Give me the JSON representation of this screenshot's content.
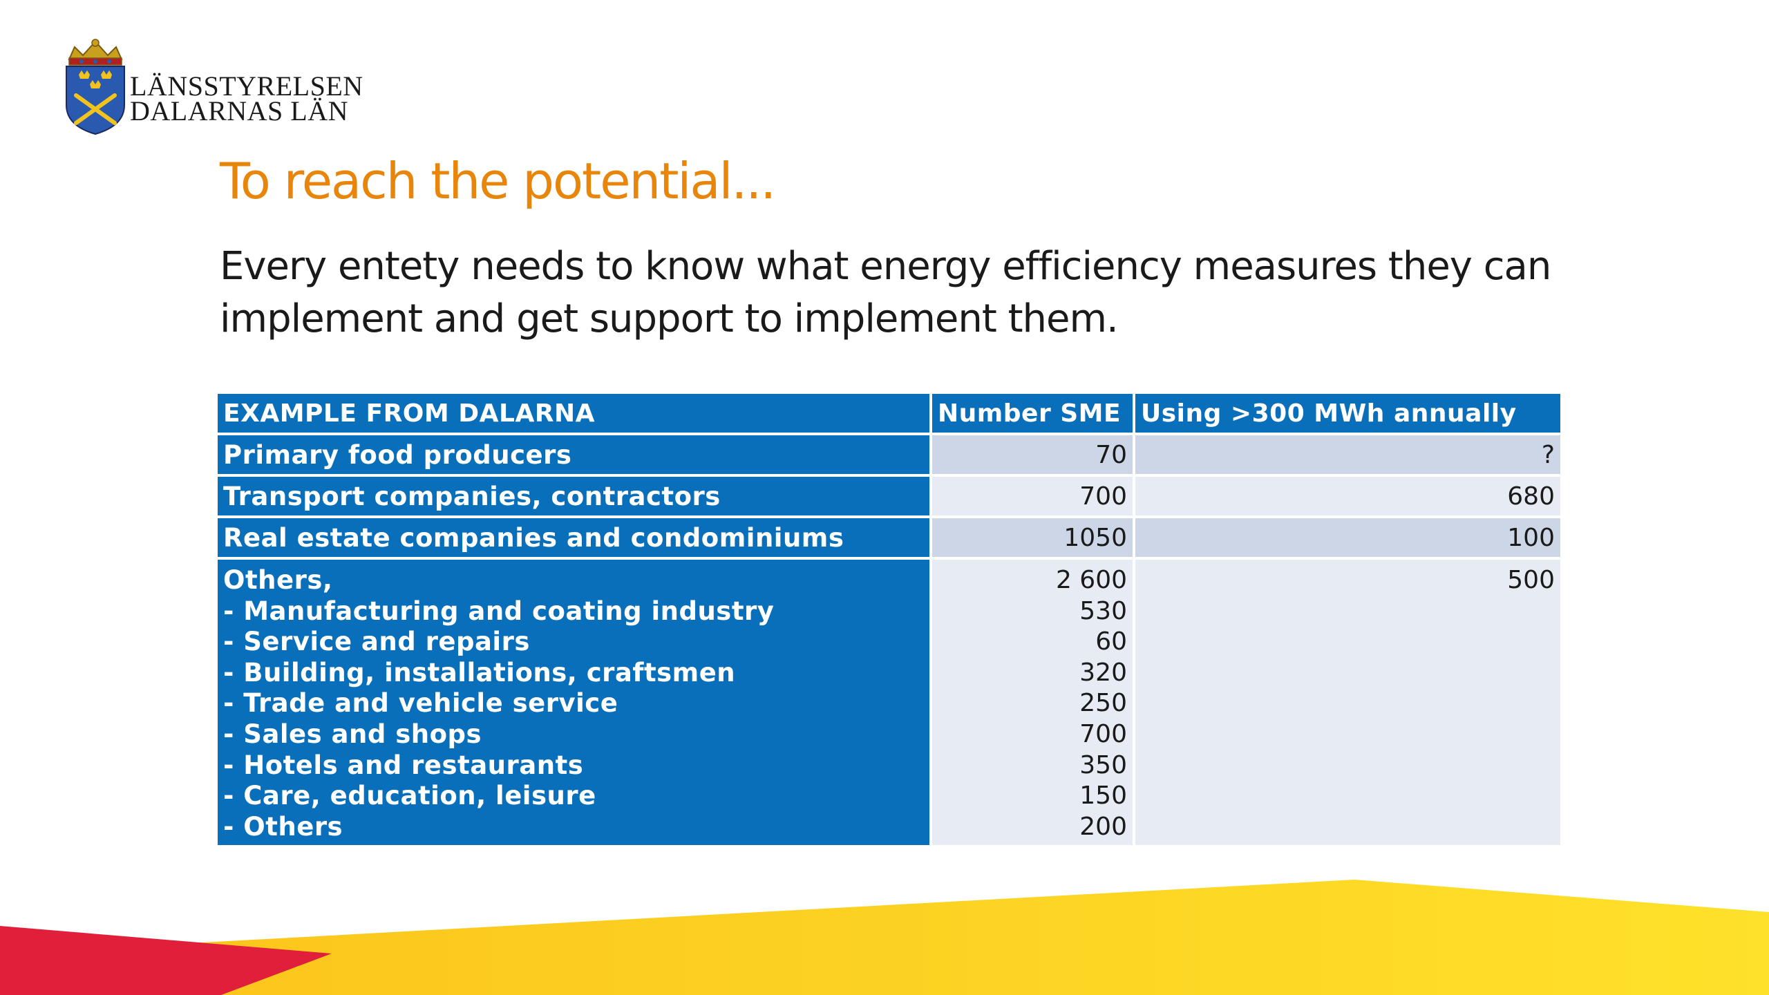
{
  "logo": {
    "line1": "LÄNSSTYRELSEN",
    "line2": "DALARNAS LÄN"
  },
  "title": "To reach the potential...",
  "subtitle": "Every entety needs to know what energy efficiency measures they can implement and get support to implement them.",
  "table": {
    "headers": [
      "EXAMPLE FROM DALARNA",
      "Number SME",
      "Using >300 MWh annually"
    ],
    "rows": [
      {
        "label": "Primary food producers",
        "sme": "70",
        "mwh": "?"
      },
      {
        "label": "Transport companies, contractors",
        "sme": "700",
        "mwh": "680"
      },
      {
        "label": "Real estate companies and condominiums",
        "sme": "1050",
        "mwh": "100"
      }
    ],
    "others": {
      "labels": [
        "Others,",
        "- Manufacturing and coating industry",
        "- Service and repairs",
        "- Building, installations, craftsmen",
        "- Trade and vehicle service",
        "- Sales and shops",
        "- Hotels and restaurants",
        "- Care, education, leisure",
        "- Others"
      ],
      "sme": [
        "2 600",
        "530",
        "60",
        "320",
        "250",
        "700",
        "350",
        "150",
        "200"
      ],
      "mwh": "500"
    }
  },
  "colors": {
    "title": "#e8860b",
    "table_blue": "#0a6fbb",
    "cell_dark": "#cdd6e6",
    "cell_light": "#e7ebf3",
    "band_red": "#e0203a",
    "band_yellow": "#fdd21c"
  }
}
